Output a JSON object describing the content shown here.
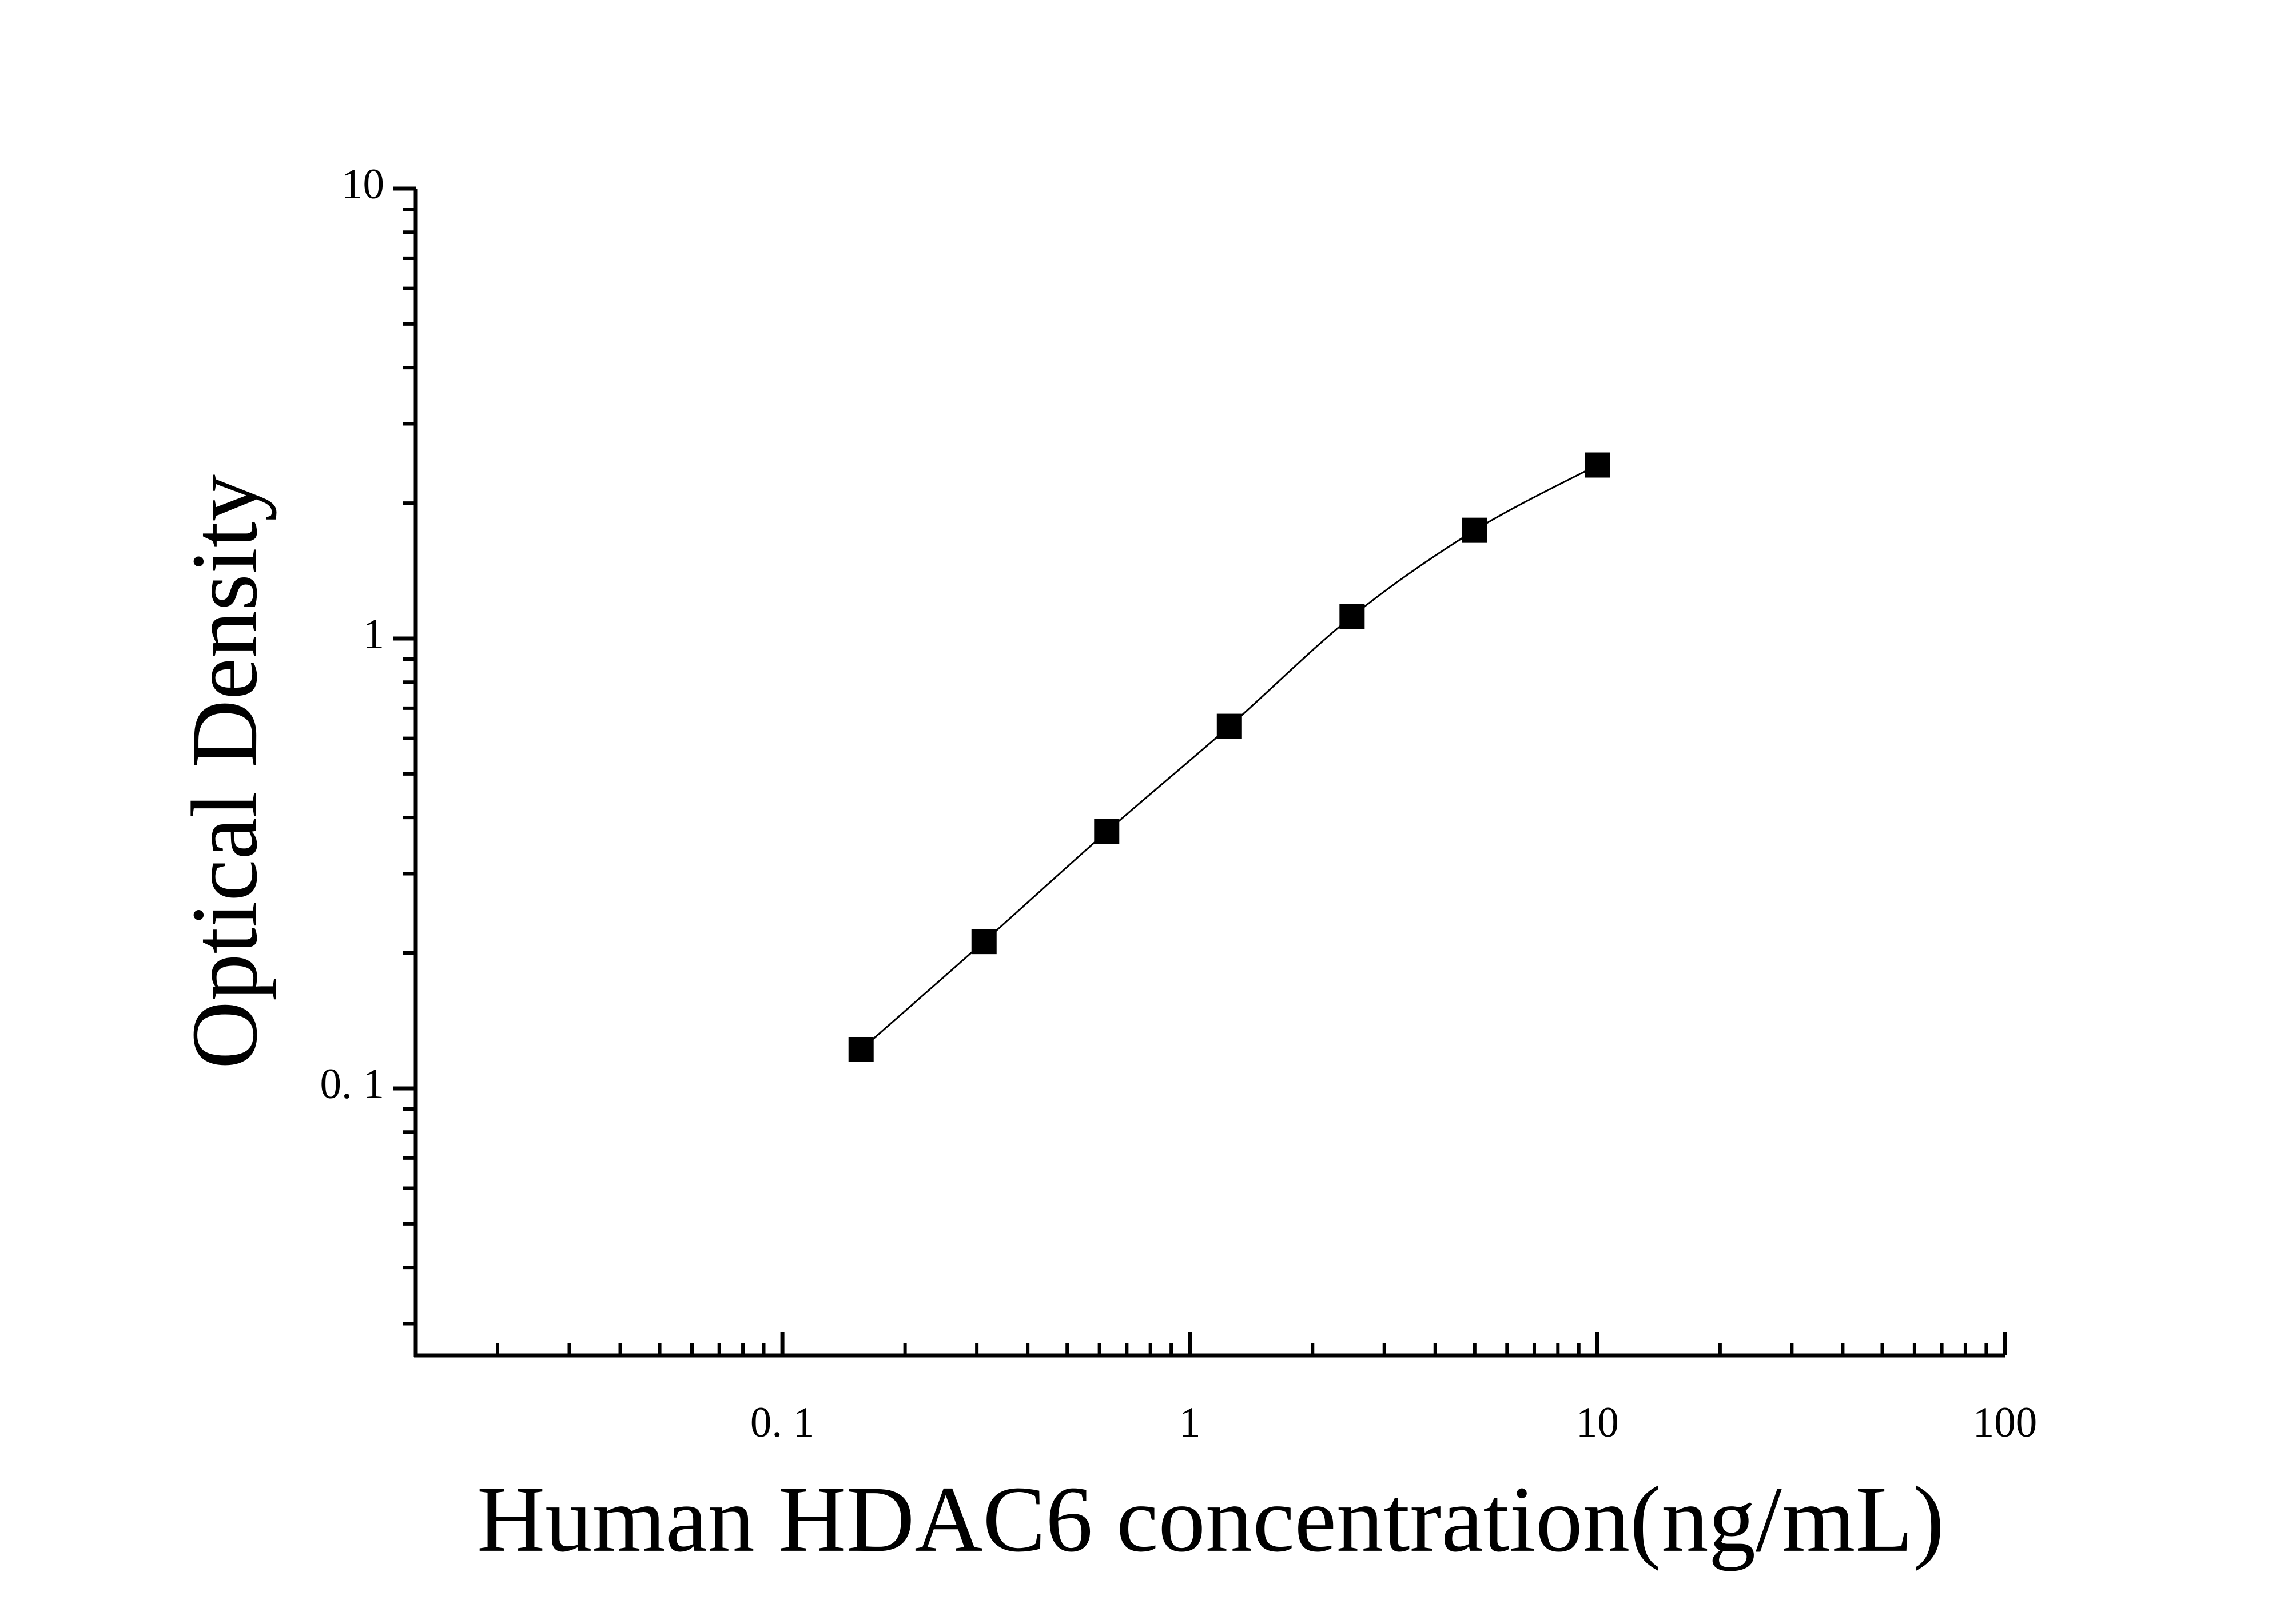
{
  "chart_data": {
    "type": "scatter",
    "x_label": "Human HDAC6 concentration(ng/mL)",
    "y_label": "Optical Density",
    "x_scale": "log",
    "y_scale": "log",
    "xlim": [
      0.0126,
      100
    ],
    "ylim": [
      0.0255,
      10
    ],
    "xticks": [
      {
        "value": 0.1,
        "label": "0. 1"
      },
      1,
      10,
      100
    ],
    "yticks": [
      {
        "value": 0.1,
        "label": "0. 1"
      },
      1,
      10
    ],
    "series": [
      {
        "color": "#000000",
        "x": [
          0.156,
          0.3125,
          0.625,
          1.25,
          2.5,
          5,
          10
        ],
        "values": [
          0.122,
          0.212,
          0.372,
          0.638,
          1.12,
          1.74,
          2.43
        ]
      }
    ]
  }
}
